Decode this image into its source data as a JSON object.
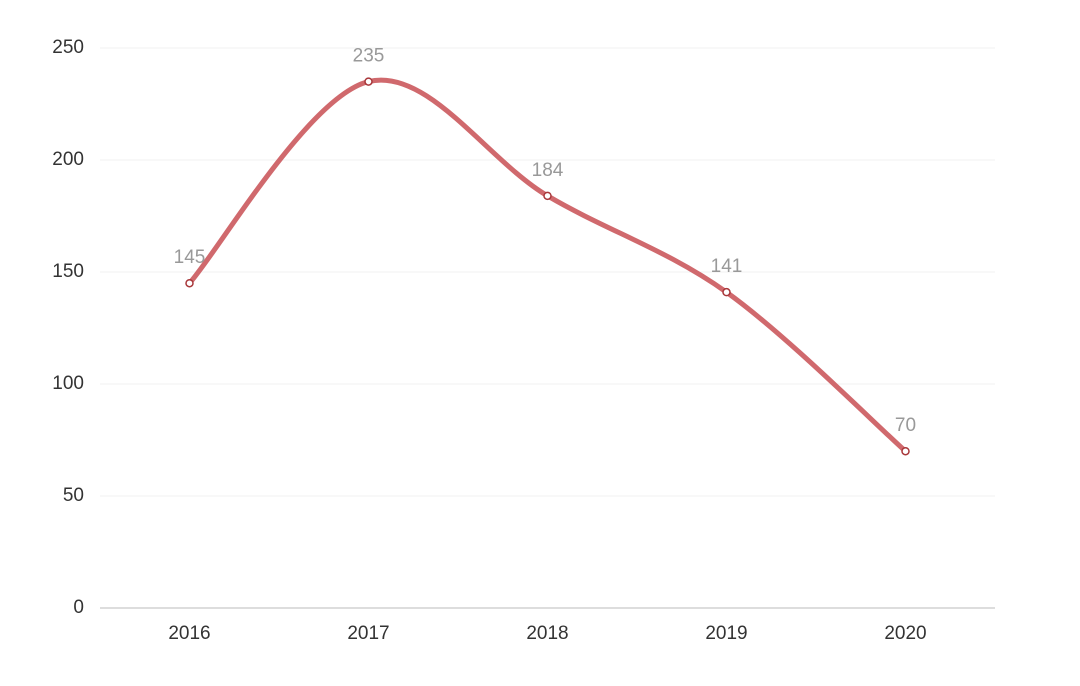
{
  "chart_data": {
    "type": "line",
    "categories": [
      "2016",
      "2017",
      "2018",
      "2019",
      "2020"
    ],
    "values": [
      145,
      235,
      184,
      141,
      70
    ],
    "color": "#d0696d",
    "smooth": true,
    "data_labels": true,
    "ylim": [
      0,
      250
    ],
    "yticks": [
      0,
      50,
      100,
      150,
      200,
      250
    ],
    "grid": true
  }
}
